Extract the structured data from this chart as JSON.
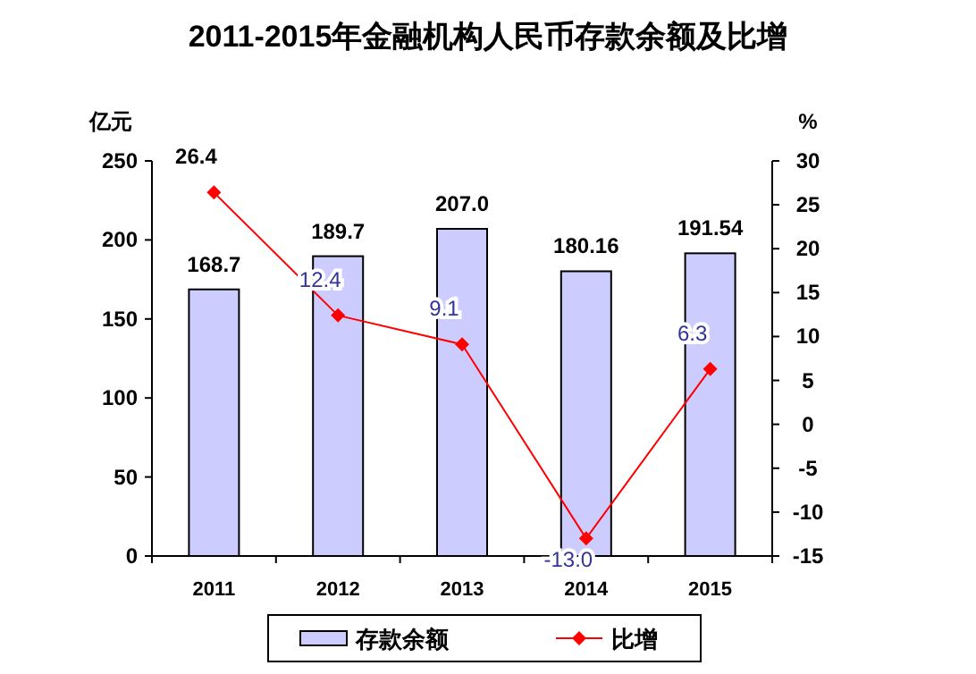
{
  "chart_data": {
    "type": "bar",
    "title": "2011-2015年金融机构人民币存款余额及比增",
    "ylabel": "亿元",
    "y2label": "%",
    "categories": [
      "2011",
      "2012",
      "2013",
      "2014",
      "2015"
    ],
    "series": [
      {
        "name": "存款余额",
        "color": "#ccccff",
        "values": [
          168.7,
          189.7,
          207.0,
          180.16,
          191.54
        ],
        "value_labels": [
          "168.7",
          "189.7",
          "207.0",
          "180.16",
          "191.54"
        ]
      },
      {
        "name": "比增",
        "type": "line",
        "axis": "y2",
        "color": "#ff0000",
        "marker": "diamond",
        "values": [
          26.4,
          12.4,
          9.1,
          -13.0,
          6.3
        ],
        "value_labels": [
          "26.4",
          "12.4",
          "9.1",
          "-13.0",
          "6.3"
        ]
      }
    ],
    "ylim": [
      0,
      250
    ],
    "yticks": [
      0,
      50,
      100,
      150,
      200,
      250
    ],
    "y2lim": [
      -15,
      30
    ],
    "y2ticks": [
      -15,
      -10,
      -5,
      0,
      5,
      10,
      15,
      20,
      25,
      30
    ],
    "legend": "bottom"
  }
}
